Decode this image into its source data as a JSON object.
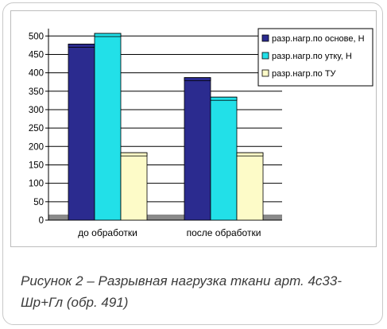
{
  "chart_data": {
    "type": "bar",
    "categories": [
      "до обработки",
      "после обработки"
    ],
    "series": [
      {
        "name": "разр.нагр.по основе, Н",
        "values": [
          478,
          387
        ],
        "color": "#2b2b8f"
      },
      {
        "name": "разр.нагр.по утку, Н",
        "values": [
          507,
          334
        ],
        "color": "#22e0e8"
      },
      {
        "name": "разр.нагр.по ТУ",
        "values": [
          183,
          183
        ],
        "color": "#fdfbc8"
      }
    ],
    "yticks": [
      0,
      50,
      100,
      150,
      200,
      250,
      300,
      350,
      400,
      450,
      500
    ],
    "ylim": [
      0,
      520
    ],
    "legend_position": "right",
    "grid": true
  },
  "caption": "Рисунок 2 – Разрывная нагрузка  ткани арт. 4с33-Шр+Гл (обр. 491)"
}
